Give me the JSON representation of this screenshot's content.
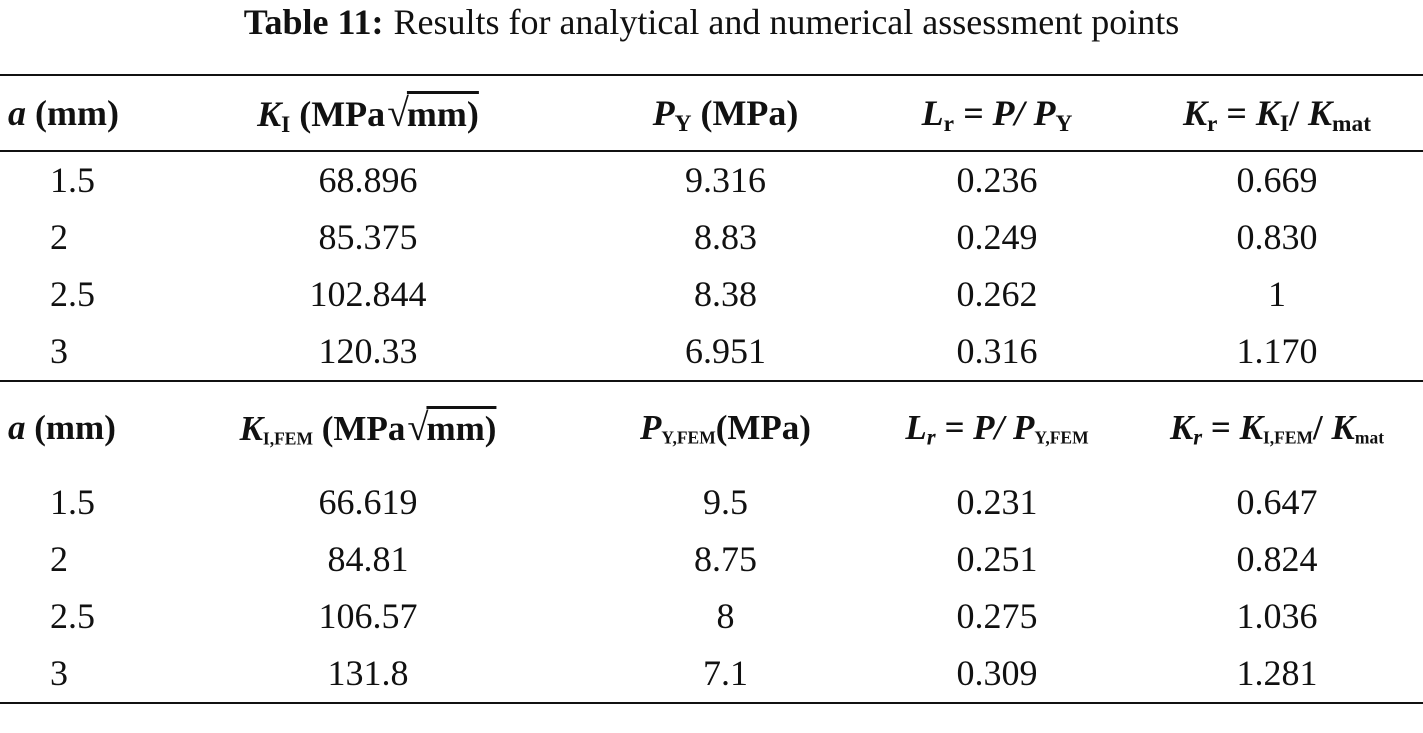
{
  "caption": {
    "label": "Table 11:",
    "text": "Results for analytical and numerical assessment points"
  },
  "analytical": {
    "headers": {
      "a_sym": "a",
      "a_unit": "(mm)",
      "k_sym": "K",
      "k_sub": "I",
      "k_unit_a": "(MPa",
      "k_unit_b": "mm)",
      "p_sym": "P",
      "p_sub": "Y",
      "p_unit": "(MPa)",
      "lr_sym": "L",
      "lr_sub": "r",
      "lr_eq": "= P/",
      "lr_den_sym": "P",
      "lr_den_sub": "Y",
      "kr_sym": "K",
      "kr_sub": "r",
      "kr_eq": "=",
      "kr_num_sym": "K",
      "kr_num_sub": "I",
      "kr_slash": "/",
      "kr_den_sym": "K",
      "kr_den_sub": "mat"
    },
    "rows": [
      [
        "1.5",
        "68.896",
        "9.316",
        "0.236",
        "0.669"
      ],
      [
        "2",
        "85.375",
        "8.83",
        "0.249",
        "0.830"
      ],
      [
        "2.5",
        "102.844",
        "8.38",
        "0.262",
        "1"
      ],
      [
        "3",
        "120.33",
        "6.951",
        "0.316",
        "1.170"
      ]
    ]
  },
  "numerical": {
    "headers": {
      "a_sym": "a",
      "a_unit": "(mm)",
      "k_sym": "K",
      "k_sub": "I,FEM",
      "k_unit_a": "(MPa",
      "k_unit_b": "mm)",
      "p_sym": "P",
      "p_sub": "Y,FEM",
      "p_unit": "(MPa)",
      "lr_sym": "L",
      "lr_sub": "r",
      "lr_eq": "= P/",
      "lr_den_sym": "P",
      "lr_den_sub": "Y,FEM",
      "kr_sym": "K",
      "kr_sub": "r",
      "kr_eq": "=",
      "kr_num_sym": "K",
      "kr_num_sub": "I,FEM",
      "kr_slash": "/",
      "kr_den_sym": "K",
      "kr_den_sub": "mat"
    },
    "rows": [
      [
        "1.5",
        "66.619",
        "9.5",
        "0.231",
        "0.647"
      ],
      [
        "2",
        "84.81",
        "8.75",
        "0.251",
        "0.824"
      ],
      [
        "2.5",
        "106.57",
        "8",
        "0.275",
        "1.036"
      ],
      [
        "3",
        "131.8",
        "7.1",
        "0.309",
        "1.281"
      ]
    ]
  }
}
